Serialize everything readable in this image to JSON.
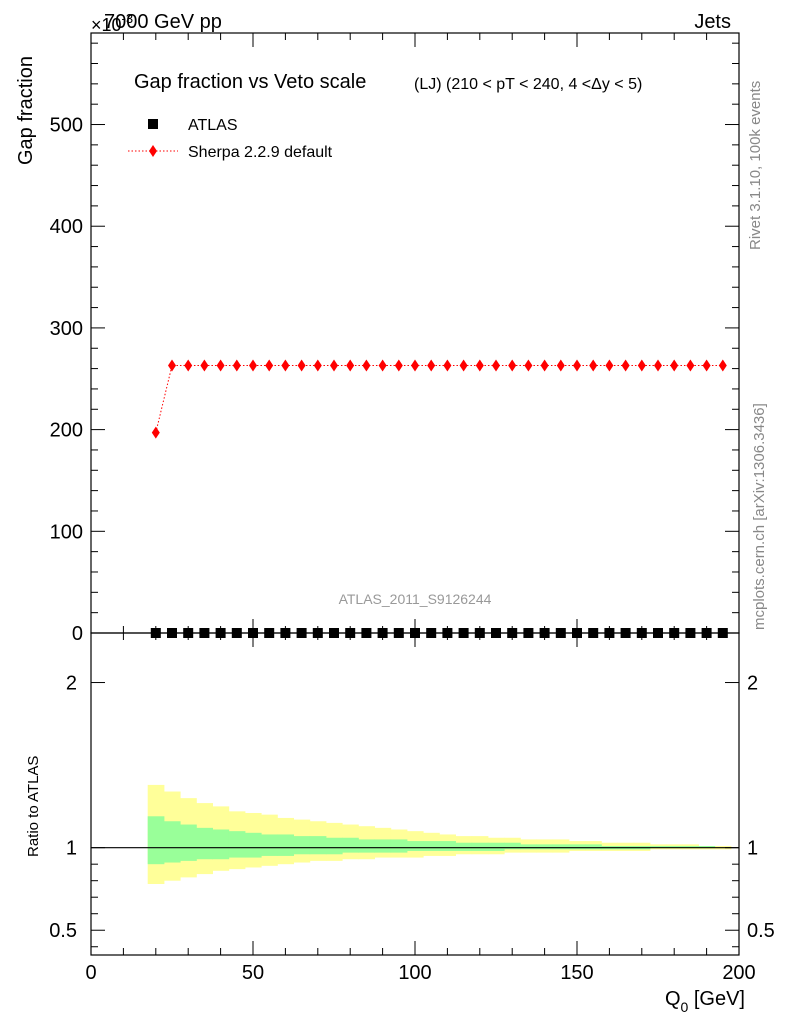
{
  "header": {
    "process": "7000 GeV pp",
    "category": "Jets",
    "exponent_prefix": "×10",
    "exponent_power": "-3"
  },
  "side_labels": {
    "rivet": "Rivet 3.1.10,  100k events",
    "mcplots": "mcplots.cern.ch [arXiv:1306.3436]"
  },
  "watermark": "ATLAS_2011_S9126244",
  "chart_data": [
    {
      "type": "scatter",
      "panel": "main",
      "title": "Gap fraction vs Veto scale",
      "subtitle": "(LJ) (210 < pT < 240, 4 <Δy < 5)",
      "ylabel": "Gap fraction",
      "xlim": [
        0,
        200
      ],
      "ylim": [
        0,
        590
      ],
      "yticks_major": [
        0,
        100,
        200,
        300,
        400,
        500
      ],
      "yticklabels": [
        "0",
        "100",
        "200",
        "300",
        "400",
        "500"
      ],
      "legend_position": "top-left",
      "x": [
        20,
        25,
        30,
        35,
        40,
        45,
        50,
        55,
        60,
        65,
        70,
        75,
        80,
        85,
        90,
        95,
        100,
        105,
        110,
        115,
        120,
        125,
        130,
        135,
        140,
        145,
        150,
        155,
        160,
        165,
        170,
        175,
        180,
        185,
        190,
        195
      ],
      "series": [
        {
          "name": "ATLAS",
          "marker": "square",
          "color": "#000000",
          "values": [
            0,
            0,
            0,
            0,
            0,
            0,
            0,
            0,
            0,
            0,
            0,
            0,
            0,
            0,
            0,
            0,
            0,
            0,
            0,
            0,
            0,
            0,
            0,
            0,
            0,
            0,
            0,
            0,
            0,
            0,
            0,
            0,
            0,
            0,
            0,
            0
          ]
        },
        {
          "name": "Sherpa 2.2.9 default",
          "marker": "diamond",
          "line": "dotted",
          "color": "#ff0000",
          "values": [
            197,
            263,
            263,
            263,
            263,
            263,
            263,
            263,
            263,
            263,
            263,
            263,
            263,
            263,
            263,
            263,
            263,
            263,
            263,
            263,
            263,
            263,
            263,
            263,
            263,
            263,
            263,
            263,
            263,
            263,
            263,
            263,
            263,
            263,
            263,
            263
          ]
        }
      ]
    },
    {
      "type": "area",
      "panel": "ratio",
      "ylabel": "Ratio to ATLAS",
      "xlabel": "Q",
      "xlabel_sub": "0",
      "xlabel_unit": " [GeV]",
      "xlim": [
        0,
        200
      ],
      "ylim": [
        0.35,
        2.3
      ],
      "yticks_major": [
        0.5,
        1,
        2
      ],
      "yticklabels": [
        "0.5",
        "1",
        "2"
      ],
      "xticks_major": [
        0,
        50,
        100,
        150,
        200
      ],
      "xticklabels": [
        "0",
        "50",
        "100",
        "150",
        "200"
      ],
      "reference_line": 1,
      "bin_edges": [
        17.5,
        22.5,
        27.5,
        32.5,
        37.5,
        42.5,
        47.5,
        52.5,
        57.5,
        62.5,
        67.5,
        72.5,
        77.5,
        82.5,
        87.5,
        92.5,
        97.5,
        102.5,
        107.5,
        112.5,
        117.5,
        122.5,
        127.5,
        132.5,
        137.5,
        142.5,
        147.5,
        152.5,
        157.5,
        162.5,
        167.5,
        172.5,
        177.5,
        182.5,
        187.5,
        192.5,
        197.5
      ],
      "bands": [
        {
          "name": "total uncertainty",
          "color": "#ffff99",
          "upper": [
            1.38,
            1.34,
            1.3,
            1.27,
            1.25,
            1.22,
            1.21,
            1.2,
            1.18,
            1.17,
            1.16,
            1.15,
            1.14,
            1.13,
            1.12,
            1.11,
            1.1,
            1.09,
            1.08,
            1.07,
            1.07,
            1.06,
            1.06,
            1.05,
            1.05,
            1.05,
            1.04,
            1.04,
            1.03,
            1.03,
            1.03,
            1.02,
            1.02,
            1.02,
            1.01,
            1.01
          ],
          "lower": [
            0.78,
            0.8,
            0.82,
            0.84,
            0.86,
            0.87,
            0.88,
            0.89,
            0.9,
            0.91,
            0.92,
            0.92,
            0.93,
            0.93,
            0.94,
            0.94,
            0.94,
            0.95,
            0.95,
            0.96,
            0.96,
            0.96,
            0.97,
            0.97,
            0.97,
            0.97,
            0.98,
            0.98,
            0.98,
            0.98,
            0.98,
            0.99,
            0.99,
            0.99,
            0.99,
            0.99
          ]
        },
        {
          "name": "statistical uncertainty",
          "color": "#99ff99",
          "upper": [
            1.19,
            1.16,
            1.14,
            1.12,
            1.11,
            1.1,
            1.09,
            1.08,
            1.08,
            1.07,
            1.07,
            1.06,
            1.06,
            1.05,
            1.05,
            1.05,
            1.04,
            1.04,
            1.04,
            1.03,
            1.03,
            1.03,
            1.03,
            1.02,
            1.02,
            1.02,
            1.02,
            1.02,
            1.01,
            1.01,
            1.01,
            1.01,
            1.01,
            1.01,
            1.01,
            1.0
          ],
          "lower": [
            0.9,
            0.91,
            0.92,
            0.93,
            0.93,
            0.94,
            0.94,
            0.95,
            0.95,
            0.96,
            0.96,
            0.96,
            0.97,
            0.97,
            0.97,
            0.97,
            0.98,
            0.98,
            0.98,
            0.98,
            0.98,
            0.98,
            0.99,
            0.99,
            0.99,
            0.99,
            0.99,
            0.99,
            0.99,
            0.99,
            0.99,
            1.0,
            1.0,
            1.0,
            1.0,
            1.0
          ]
        }
      ]
    }
  ]
}
